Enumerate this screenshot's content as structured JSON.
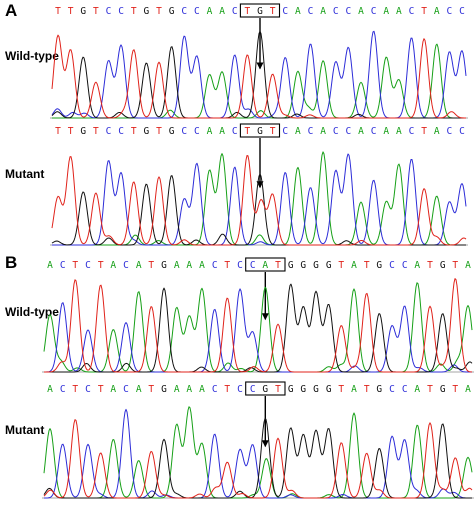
{
  "colors": {
    "A": "#17a018",
    "C": "#2d2dd8",
    "G": "#111111",
    "T": "#e0231b"
  },
  "panels": [
    {
      "letter": "A",
      "tracks": [
        {
          "label": "Wild-type",
          "sequence": "TTGTCCTGTGCCAACTGTCACACCACAACTACC",
          "codon_start": 15
        },
        {
          "label": "Mutant",
          "sequence": "TTGTCCTGTGCCAACTGTCACACCACAACTACC",
          "codon_start": 15
        }
      ]
    },
    {
      "letter": "B",
      "tracks": [
        {
          "label": "Wild-type",
          "sequence": "ACTCTACATGAAACTCCATGGGGTATGCCATGTA",
          "codon_start": 16
        },
        {
          "label": "Mutant",
          "sequence": "ACTCTACATGAAACTCCGTGGGGTATGCCATGTA",
          "codon_start": 16
        }
      ]
    }
  ]
}
